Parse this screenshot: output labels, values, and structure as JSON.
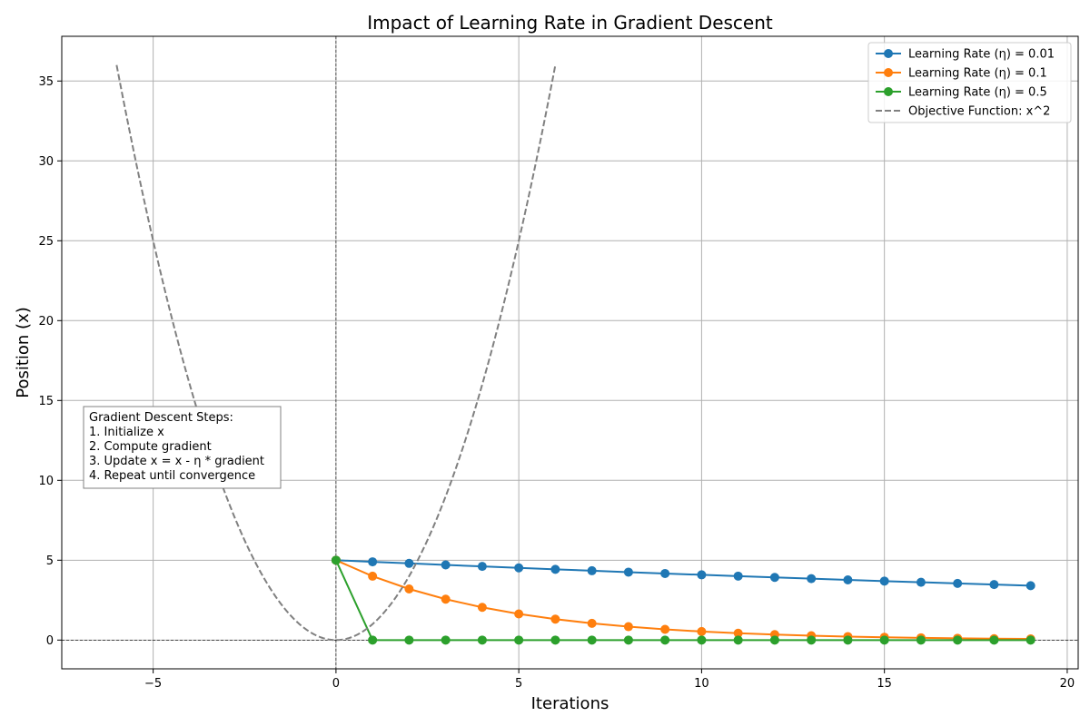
{
  "chart_data": {
    "type": "line",
    "title": "Impact of Learning Rate in Gradient Descent",
    "xlabel": "Iterations",
    "ylabel": "Position (x)",
    "xlim": [
      -7.5,
      20.3
    ],
    "ylim": [
      -1.8,
      37.8
    ],
    "xticks": [
      -5,
      0,
      5,
      10,
      15,
      20
    ],
    "xtick_labels": [
      "−5",
      "0",
      "5",
      "10",
      "15",
      "20"
    ],
    "yticks": [
      0,
      5,
      10,
      15,
      20,
      25,
      30,
      35
    ],
    "ytick_labels": [
      "0",
      "5",
      "10",
      "15",
      "20",
      "25",
      "30",
      "35"
    ],
    "grid": true,
    "legend_position": "top-right",
    "series": [
      {
        "name": "Learning Rate (η) = 0.01",
        "color": "#1f77b4",
        "marker": "circle",
        "x": [
          0,
          1,
          2,
          3,
          4,
          5,
          6,
          7,
          8,
          9,
          10,
          11,
          12,
          13,
          14,
          15,
          16,
          17,
          18,
          19
        ],
        "y": [
          5.0,
          4.9,
          4.802,
          4.706,
          4.612,
          4.52,
          4.429,
          4.341,
          4.254,
          4.169,
          4.085,
          4.004,
          3.924,
          3.845,
          3.768,
          3.693,
          3.619,
          3.547,
          3.476,
          3.406
        ]
      },
      {
        "name": "Learning Rate (η) = 0.1",
        "color": "#ff7f0e",
        "marker": "circle",
        "x": [
          0,
          1,
          2,
          3,
          4,
          5,
          6,
          7,
          8,
          9,
          10,
          11,
          12,
          13,
          14,
          15,
          16,
          17,
          18,
          19
        ],
        "y": [
          5.0,
          4.0,
          3.2,
          2.56,
          2.048,
          1.638,
          1.311,
          1.049,
          0.839,
          0.671,
          0.537,
          0.429,
          0.344,
          0.275,
          0.22,
          0.176,
          0.141,
          0.113,
          0.09,
          0.072
        ]
      },
      {
        "name": "Learning Rate (η) = 0.5",
        "color": "#2ca02c",
        "marker": "circle",
        "x": [
          0,
          1,
          2,
          3,
          4,
          5,
          6,
          7,
          8,
          9,
          10,
          11,
          12,
          13,
          14,
          15,
          16,
          17,
          18,
          19
        ],
        "y": [
          5.0,
          0,
          0,
          0,
          0,
          0,
          0,
          0,
          0,
          0,
          0,
          0,
          0,
          0,
          0,
          0,
          0,
          0,
          0,
          0
        ]
      },
      {
        "name": "Objective Function: x^2",
        "color": "#808080",
        "dash": "dashed",
        "function": "x^2",
        "domain": [
          -6,
          6
        ]
      }
    ],
    "reference_lines": [
      {
        "orientation": "horizontal",
        "value": 0,
        "style": "dashed",
        "color": "#000000"
      },
      {
        "orientation": "vertical",
        "value": 0,
        "style": "dashed",
        "color": "#000000"
      }
    ],
    "annotation": {
      "lines": [
        "Gradient Descent Steps:",
        "1. Initialize x",
        "2. Compute gradient",
        "3. Update x = x - η * gradient",
        "4. Repeat until convergence"
      ]
    }
  }
}
